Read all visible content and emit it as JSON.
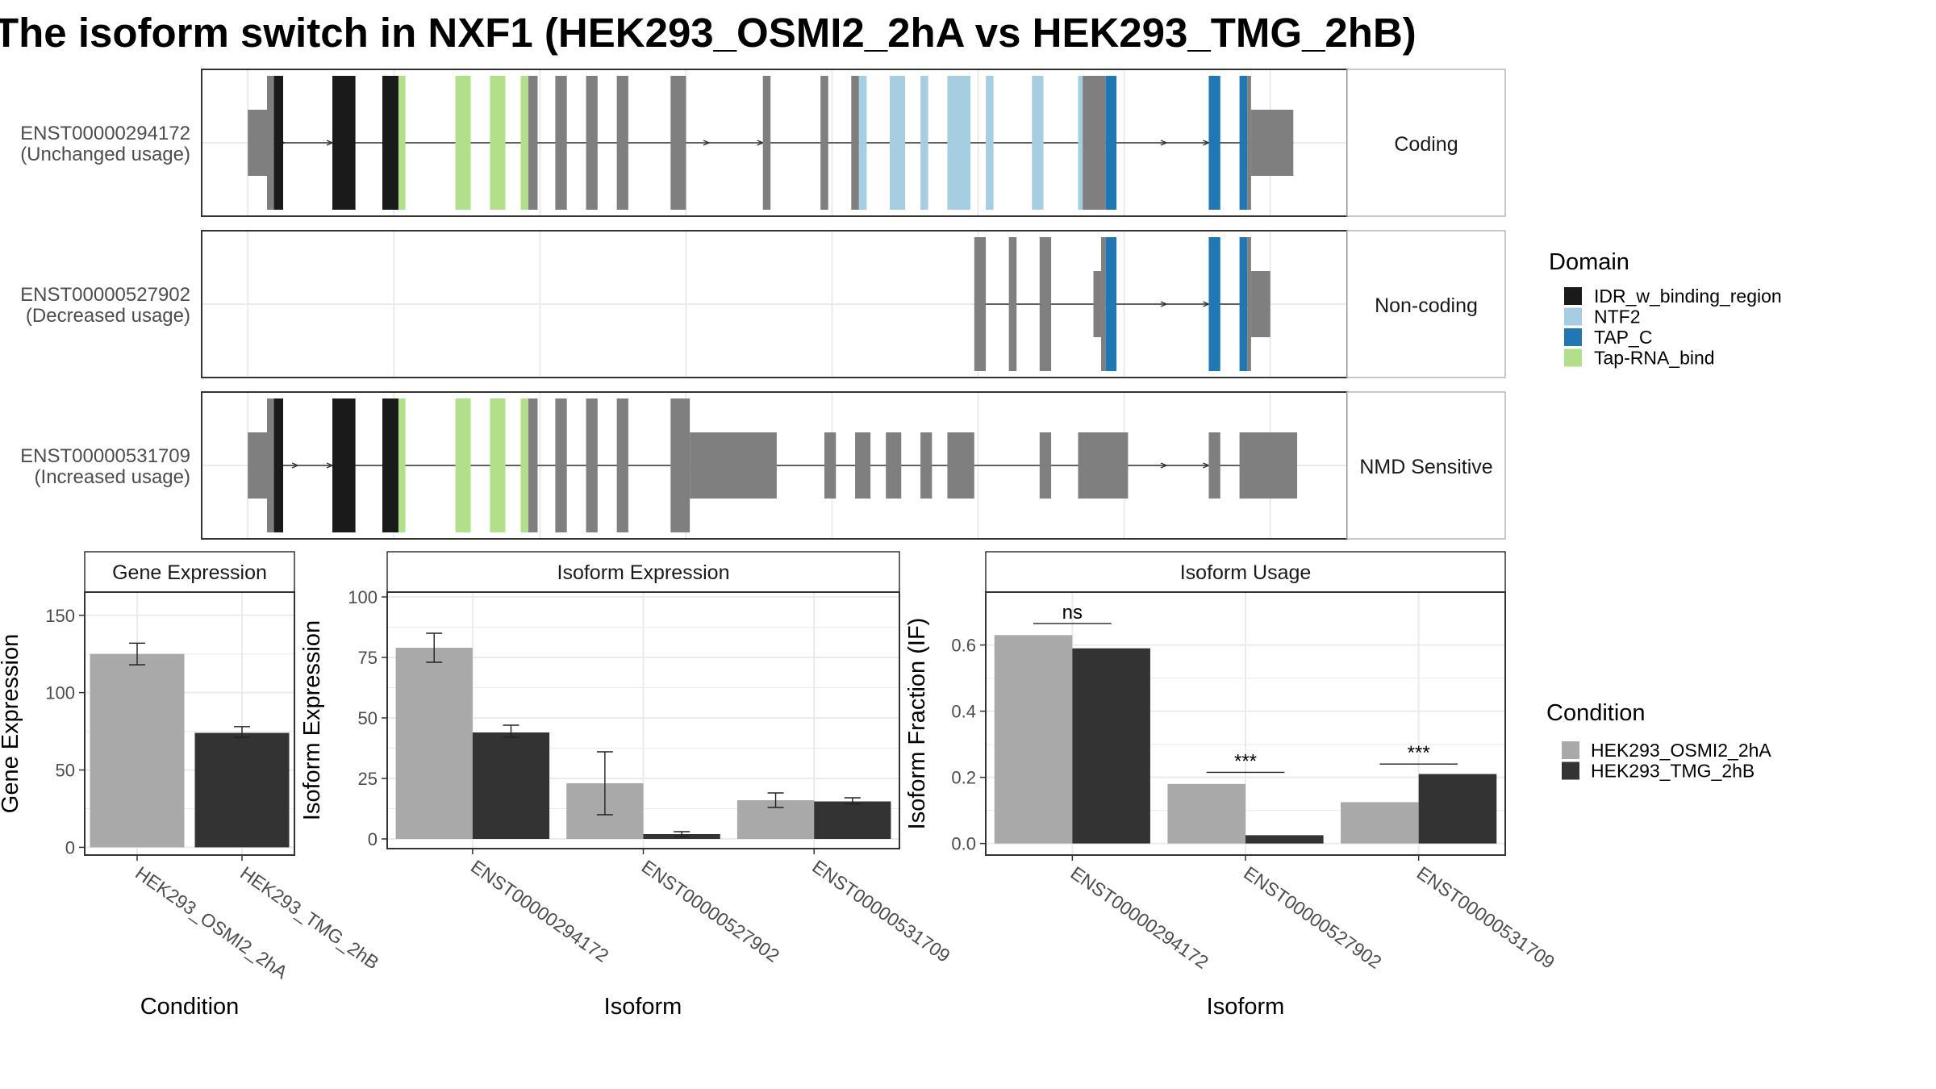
{
  "title": "The isoform switch in NXF1 (HEK293_OSMI2_2hA vs HEK293_TMG_2hB)",
  "colors": {
    "IDR_w_binding_region": "#1a1a1a",
    "NTF2": "#a6cee3",
    "TAP_C": "#1f78b4",
    "Tap-RNA_bind": "#b2df8a",
    "no_domain": "#7f7f7f",
    "HEK293_OSMI2_2hA": "#a9a9a9",
    "HEK293_TMG_2hB": "#333333",
    "strip_bg": "#ffffff",
    "panel_border": "#333333",
    "grid": "#ebebeb"
  },
  "domain_legend": {
    "title": "Domain",
    "items": [
      {
        "label": "IDR_w_binding_region",
        "color": "#1a1a1a"
      },
      {
        "label": "NTF2",
        "color": "#a6cee3"
      },
      {
        "label": "TAP_C",
        "color": "#1f78b4"
      },
      {
        "label": "Tap-RNA_bind",
        "color": "#b2df8a"
      }
    ]
  },
  "condition_legend": {
    "title": "Condition",
    "items": [
      {
        "label": "HEK293_OSMI2_2hA",
        "color": "#a9a9a9"
      },
      {
        "label": "HEK293_TMG_2hB",
        "color": "#333333"
      }
    ]
  },
  "transcripts": [
    {
      "id": "ENST00000294172",
      "usage": "(Unchanged usage)",
      "category": "Coding",
      "exons": [
        {
          "s": 0.0,
          "e": 2.5,
          "t": "utr"
        },
        {
          "s": 2.5,
          "e": 3.4,
          "t": "cds",
          "d": "no_domain"
        },
        {
          "s": 3.4,
          "e": 4.6,
          "t": "cds",
          "d": "IDR_w_binding_region"
        },
        {
          "s": 11.0,
          "e": 14.0,
          "t": "cds",
          "d": "IDR_w_binding_region"
        },
        {
          "s": 17.5,
          "e": 19.6,
          "t": "cds",
          "d": "IDR_w_binding_region"
        },
        {
          "s": 19.6,
          "e": 20.5,
          "t": "cds",
          "d": "Tap-RNA_bind"
        },
        {
          "s": 27.0,
          "e": 29.0,
          "t": "cds",
          "d": "Tap-RNA_bind"
        },
        {
          "s": 31.5,
          "e": 33.5,
          "t": "cds",
          "d": "Tap-RNA_bind"
        },
        {
          "s": 35.5,
          "e": 36.5,
          "t": "cds",
          "d": "Tap-RNA_bind"
        },
        {
          "s": 36.5,
          "e": 37.7,
          "t": "cds",
          "d": "no_domain"
        },
        {
          "s": 40.0,
          "e": 41.5,
          "t": "cds",
          "d": "no_domain"
        },
        {
          "s": 44.0,
          "e": 45.5,
          "t": "cds",
          "d": "no_domain"
        },
        {
          "s": 48.0,
          "e": 49.5,
          "t": "cds",
          "d": "no_domain"
        },
        {
          "s": 55.0,
          "e": 57.0,
          "t": "cds",
          "d": "no_domain"
        },
        {
          "s": 67.0,
          "e": 68.0,
          "t": "cds",
          "d": "no_domain"
        },
        {
          "s": 74.5,
          "e": 75.5,
          "t": "cds",
          "d": "no_domain"
        },
        {
          "s": 78.5,
          "e": 79.5,
          "t": "cds",
          "d": "no_domain"
        },
        {
          "s": 79.5,
          "e": 80.5,
          "t": "cds",
          "d": "NTF2"
        },
        {
          "s": 83.5,
          "e": 85.5,
          "t": "cds",
          "d": "NTF2"
        },
        {
          "s": 87.5,
          "e": 88.5,
          "t": "cds",
          "d": "NTF2"
        },
        {
          "s": 91.0,
          "e": 94.0,
          "t": "cds",
          "d": "NTF2"
        },
        {
          "s": 96.0,
          "e": 97.0,
          "t": "cds",
          "d": "NTF2"
        },
        {
          "s": 102.0,
          "e": 103.5,
          "t": "cds",
          "d": "NTF2"
        },
        {
          "s": 108.0,
          "e": 108.6,
          "t": "cds",
          "d": "NTF2"
        },
        {
          "s": 108.6,
          "e": 111.6,
          "t": "cds",
          "d": "no_domain"
        },
        {
          "s": 111.6,
          "e": 113.0,
          "t": "cds",
          "d": "TAP_C"
        },
        {
          "s": 125.0,
          "e": 126.5,
          "t": "cds",
          "d": "TAP_C"
        },
        {
          "s": 129.0,
          "e": 130.0,
          "t": "cds",
          "d": "TAP_C"
        },
        {
          "s": 130.0,
          "e": 130.5,
          "t": "cds",
          "d": "no_domain"
        },
        {
          "s": 130.5,
          "e": 136.0,
          "t": "utr"
        }
      ],
      "arrows": [
        4.8,
        11.0,
        60.0,
        67.0,
        119.5,
        125.0
      ]
    },
    {
      "id": "ENST00000527902",
      "usage": "(Decreased usage)",
      "category": "Non-coding",
      "exons": [
        {
          "s": 94.5,
          "e": 96.0,
          "t": "cds",
          "d": "no_domain"
        },
        {
          "s": 99.0,
          "e": 100.0,
          "t": "cds",
          "d": "no_domain"
        },
        {
          "s": 103.0,
          "e": 104.5,
          "t": "cds",
          "d": "no_domain"
        },
        {
          "s": 110.0,
          "e": 111.0,
          "t": "utr"
        },
        {
          "s": 111.0,
          "e": 111.6,
          "t": "cds",
          "d": "no_domain"
        },
        {
          "s": 111.6,
          "e": 113.0,
          "t": "cds",
          "d": "TAP_C"
        },
        {
          "s": 125.0,
          "e": 126.5,
          "t": "cds",
          "d": "TAP_C"
        },
        {
          "s": 129.0,
          "e": 130.0,
          "t": "cds",
          "d": "TAP_C"
        },
        {
          "s": 130.0,
          "e": 130.5,
          "t": "cds",
          "d": "no_domain"
        },
        {
          "s": 130.5,
          "e": 133.0,
          "t": "utr"
        }
      ],
      "arrows": [
        119.5,
        125.0
      ]
    },
    {
      "id": "ENST00000531709",
      "usage": "(Increased usage)",
      "category": "NMD Sensitive",
      "exons": [
        {
          "s": 0.0,
          "e": 2.5,
          "t": "utr"
        },
        {
          "s": 2.5,
          "e": 3.4,
          "t": "cds",
          "d": "no_domain"
        },
        {
          "s": 3.4,
          "e": 4.6,
          "t": "cds",
          "d": "IDR_w_binding_region"
        },
        {
          "s": 11.0,
          "e": 14.0,
          "t": "cds",
          "d": "IDR_w_binding_region"
        },
        {
          "s": 17.5,
          "e": 19.6,
          "t": "cds",
          "d": "IDR_w_binding_region"
        },
        {
          "s": 19.6,
          "e": 20.5,
          "t": "cds",
          "d": "Tap-RNA_bind"
        },
        {
          "s": 27.0,
          "e": 29.0,
          "t": "cds",
          "d": "Tap-RNA_bind"
        },
        {
          "s": 31.5,
          "e": 33.5,
          "t": "cds",
          "d": "Tap-RNA_bind"
        },
        {
          "s": 35.5,
          "e": 36.5,
          "t": "cds",
          "d": "Tap-RNA_bind"
        },
        {
          "s": 36.5,
          "e": 37.7,
          "t": "cds",
          "d": "no_domain"
        },
        {
          "s": 40.0,
          "e": 41.5,
          "t": "cds",
          "d": "no_domain"
        },
        {
          "s": 44.0,
          "e": 45.5,
          "t": "cds",
          "d": "no_domain"
        },
        {
          "s": 48.0,
          "e": 49.5,
          "t": "cds",
          "d": "no_domain"
        },
        {
          "s": 55.0,
          "e": 57.5,
          "t": "cds",
          "d": "no_domain"
        },
        {
          "s": 57.5,
          "e": 68.8,
          "t": "utr"
        },
        {
          "s": 75.0,
          "e": 76.5,
          "t": "utr"
        },
        {
          "s": 79.0,
          "e": 81.0,
          "t": "utr"
        },
        {
          "s": 83.0,
          "e": 85.0,
          "t": "utr"
        },
        {
          "s": 87.5,
          "e": 89.0,
          "t": "utr"
        },
        {
          "s": 91.0,
          "e": 94.5,
          "t": "utr"
        },
        {
          "s": 103.0,
          "e": 104.5,
          "t": "utr"
        },
        {
          "s": 108.0,
          "e": 114.5,
          "t": "utr"
        },
        {
          "s": 125.0,
          "e": 126.5,
          "t": "utr"
        },
        {
          "s": 129.0,
          "e": 136.5,
          "t": "utr"
        }
      ],
      "arrows": [
        6.5,
        11.0,
        119.5,
        125.0
      ]
    }
  ],
  "chart_data": [
    {
      "type": "bar",
      "title": "Gene Expression",
      "xlabel": "Condition",
      "ylabel": "Gene Expression",
      "categories": [
        "HEK293_OSMI2_2hA",
        "HEK293_TMG_2hB"
      ],
      "values": [
        125,
        74
      ],
      "errors": [
        [
          118,
          132
        ],
        [
          71,
          78
        ]
      ],
      "ylim": [
        -5,
        165
      ],
      "yticks": [
        0,
        50,
        100,
        150
      ]
    },
    {
      "type": "bar",
      "title": "Isoform Expression",
      "xlabel": "Isoform",
      "ylabel": "Isoform Expression",
      "categories": [
        "ENST00000294172",
        "ENST00000527902",
        "ENST00000531709"
      ],
      "series": [
        {
          "name": "HEK293_OSMI2_2hA",
          "values": [
            79,
            23,
            16
          ],
          "errors": [
            [
              73,
              85
            ],
            [
              10,
              36
            ],
            [
              13,
              19
            ]
          ]
        },
        {
          "name": "HEK293_TMG_2hB",
          "values": [
            44,
            2,
            15.5
          ],
          "errors": [
            [
              42,
              47
            ],
            [
              1,
              3
            ],
            [
              14.5,
              17
            ]
          ]
        }
      ],
      "ylim": [
        -4,
        102
      ],
      "yticks": [
        0,
        25,
        50,
        75,
        100
      ]
    },
    {
      "type": "bar",
      "title": "Isoform Usage",
      "xlabel": "Isoform",
      "ylabel": "Isoform Fraction (IF)",
      "categories": [
        "ENST00000294172",
        "ENST00000527902",
        "ENST00000531709"
      ],
      "series": [
        {
          "name": "HEK293_OSMI2_2hA",
          "values": [
            0.63,
            0.18,
            0.125
          ]
        },
        {
          "name": "HEK293_TMG_2hB",
          "values": [
            0.59,
            0.025,
            0.21
          ]
        }
      ],
      "significance": [
        "ns",
        "***",
        "***"
      ],
      "sig_y": [
        0.665,
        0.215,
        0.24
      ],
      "ylim": [
        -0.035,
        0.76
      ],
      "yticks": [
        0.0,
        0.2,
        0.4,
        0.6
      ],
      "ytick_labels": [
        "0.0",
        "0.2",
        "0.4",
        "0.6"
      ]
    }
  ]
}
